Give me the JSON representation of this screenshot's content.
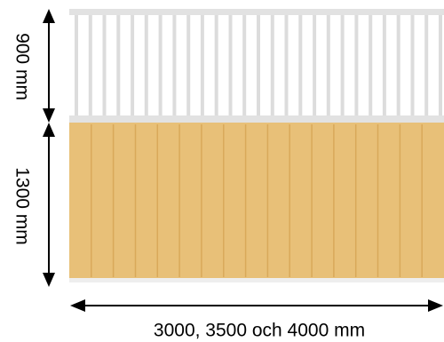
{
  "dimensions": {
    "top_height_label": "900 mm",
    "bottom_height_label": "1300 mm",
    "width_label": "3000, 3500 och 4000 mm"
  },
  "colors": {
    "railing_background": "#ffffff",
    "railing_bar": "#dcdcdc",
    "railing_rail": "#e2e2e2",
    "panel_fill": "#e8c078",
    "panel_line": "#d9a95a",
    "arrow": "#000000"
  },
  "railing_bar_count": 27,
  "panel_board_count": 17
}
